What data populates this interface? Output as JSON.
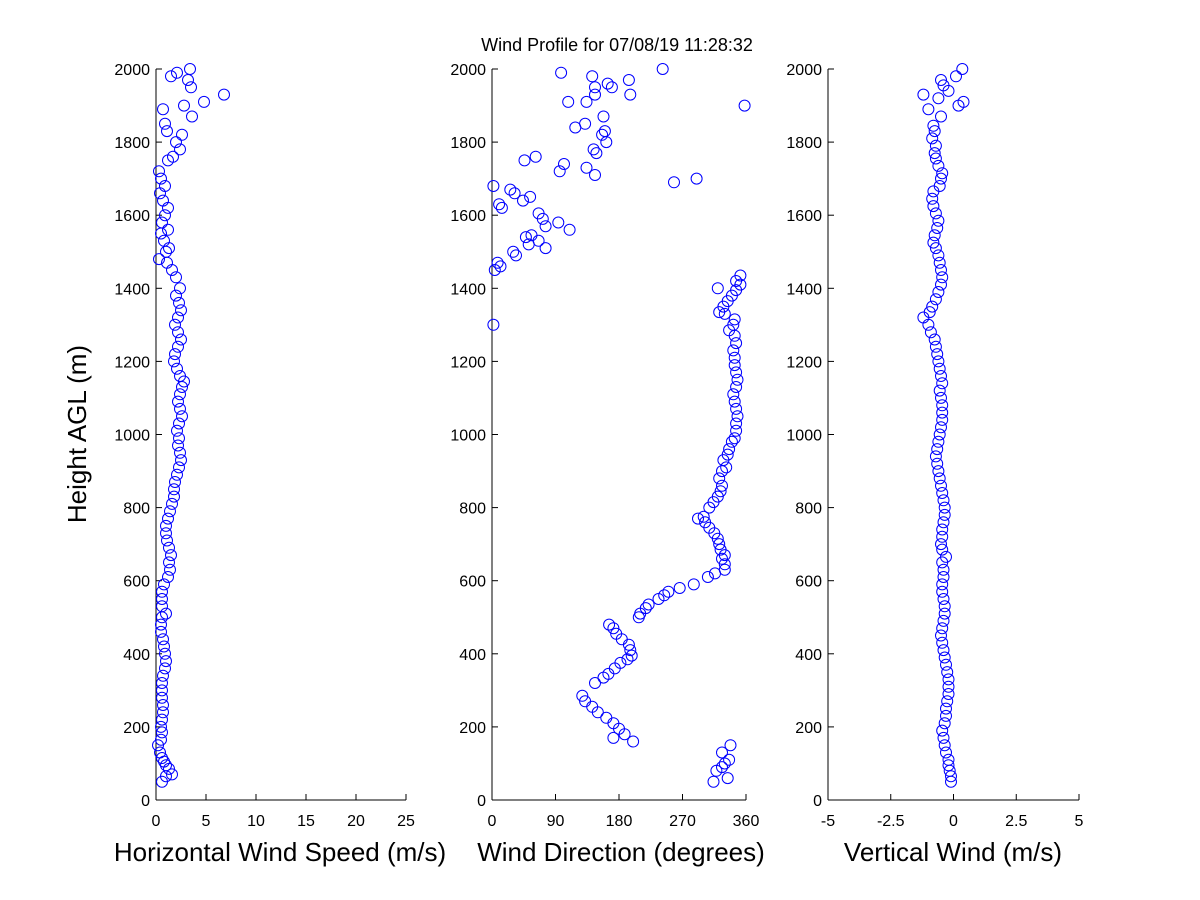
{
  "figure": {
    "title": "Wind Profile for  07/08/19 11:28:32",
    "ylabel": "Height AGL (m)"
  },
  "chart_data": [
    {
      "type": "scatter",
      "xlabel": "Horizontal Wind Speed (m/s)",
      "ylabel": "Height AGL (m)",
      "xlim": [
        0,
        25
      ],
      "ylim": [
        0,
        2000
      ],
      "xticks": [
        "0",
        "5",
        "10",
        "15",
        "20",
        "25"
      ],
      "yticks": [
        "0",
        "200",
        "400",
        "600",
        "800",
        "1000",
        "1200",
        "1400",
        "1600",
        "1800",
        "2000"
      ],
      "marker_color": "#0000ff",
      "grid": false,
      "points": [
        [
          0.6,
          50
        ],
        [
          1.0,
          65
        ],
        [
          1.6,
          70
        ],
        [
          1.3,
          85
        ],
        [
          1.0,
          95
        ],
        [
          0.8,
          105
        ],
        [
          0.6,
          115
        ],
        [
          0.4,
          130
        ],
        [
          0.2,
          150
        ],
        [
          0.5,
          165
        ],
        [
          0.6,
          185
        ],
        [
          0.5,
          200
        ],
        [
          0.6,
          220
        ],
        [
          0.7,
          240
        ],
        [
          0.7,
          260
        ],
        [
          0.6,
          280
        ],
        [
          0.6,
          300
        ],
        [
          0.6,
          320
        ],
        [
          0.7,
          340
        ],
        [
          0.9,
          360
        ],
        [
          1.0,
          380
        ],
        [
          0.9,
          400
        ],
        [
          0.8,
          420
        ],
        [
          0.7,
          440
        ],
        [
          0.5,
          460
        ],
        [
          0.5,
          480
        ],
        [
          0.6,
          500
        ],
        [
          1.0,
          510
        ],
        [
          0.6,
          530
        ],
        [
          0.6,
          550
        ],
        [
          0.6,
          570
        ],
        [
          0.8,
          590
        ],
        [
          1.2,
          610
        ],
        [
          1.4,
          630
        ],
        [
          1.3,
          650
        ],
        [
          1.5,
          670
        ],
        [
          1.3,
          690
        ],
        [
          1.1,
          710
        ],
        [
          1.0,
          730
        ],
        [
          1.0,
          750
        ],
        [
          1.2,
          770
        ],
        [
          1.4,
          790
        ],
        [
          1.6,
          810
        ],
        [
          1.8,
          830
        ],
        [
          1.8,
          850
        ],
        [
          1.9,
          870
        ],
        [
          2.1,
          890
        ],
        [
          2.3,
          910
        ],
        [
          2.5,
          930
        ],
        [
          2.4,
          950
        ],
        [
          2.2,
          970
        ],
        [
          2.3,
          990
        ],
        [
          2.1,
          1010
        ],
        [
          2.3,
          1030
        ],
        [
          2.6,
          1050
        ],
        [
          2.4,
          1070
        ],
        [
          2.2,
          1090
        ],
        [
          2.4,
          1110
        ],
        [
          2.6,
          1130
        ],
        [
          2.8,
          1145
        ],
        [
          2.4,
          1160
        ],
        [
          2.1,
          1180
        ],
        [
          1.8,
          1200
        ],
        [
          1.9,
          1220
        ],
        [
          2.2,
          1240
        ],
        [
          2.5,
          1260
        ],
        [
          2.2,
          1280
        ],
        [
          1.9,
          1300
        ],
        [
          2.2,
          1320
        ],
        [
          2.5,
          1340
        ],
        [
          2.3,
          1360
        ],
        [
          2.0,
          1380
        ],
        [
          2.4,
          1400
        ],
        [
          2.0,
          1430
        ],
        [
          1.6,
          1450
        ],
        [
          1.1,
          1470
        ],
        [
          0.3,
          1480
        ],
        [
          1.0,
          1500
        ],
        [
          1.3,
          1510
        ],
        [
          0.8,
          1530
        ],
        [
          0.5,
          1550
        ],
        [
          1.2,
          1560
        ],
        [
          0.6,
          1580
        ],
        [
          0.9,
          1600
        ],
        [
          1.2,
          1620
        ],
        [
          0.7,
          1640
        ],
        [
          0.4,
          1660
        ],
        [
          0.9,
          1680
        ],
        [
          0.5,
          1700
        ],
        [
          0.3,
          1720
        ],
        [
          1.2,
          1750
        ],
        [
          1.7,
          1760
        ],
        [
          2.4,
          1780
        ],
        [
          2.0,
          1800
        ],
        [
          2.6,
          1820
        ],
        [
          1.1,
          1830
        ],
        [
          0.9,
          1850
        ],
        [
          0.7,
          1890
        ],
        [
          2.8,
          1900
        ],
        [
          4.8,
          1910
        ],
        [
          6.8,
          1930
        ],
        [
          3.5,
          1950
        ],
        [
          3.2,
          1970
        ],
        [
          1.5,
          1980
        ],
        [
          2.1,
          1990
        ],
        [
          3.4,
          2000
        ],
        [
          3.6,
          1870
        ]
      ]
    },
    {
      "type": "scatter",
      "xlabel": "Wind Direction (degrees)",
      "xlim": [
        0,
        360
      ],
      "ylim": [
        0,
        2000
      ],
      "xticks": [
        "0",
        "90",
        "180",
        "270",
        "360"
      ],
      "yticks": [
        "0",
        "200",
        "400",
        "600",
        "800",
        "1000",
        "1200",
        "1400",
        "1600",
        "1800",
        "2000"
      ],
      "marker_color": "#0000ff",
      "grid": false,
      "points": [
        [
          314,
          50
        ],
        [
          334,
          60
        ],
        [
          318,
          80
        ],
        [
          326,
          90
        ],
        [
          330,
          100
        ],
        [
          336,
          110
        ],
        [
          326,
          130
        ],
        [
          338,
          150
        ],
        [
          200,
          160
        ],
        [
          172,
          170
        ],
        [
          188,
          180
        ],
        [
          180,
          195
        ],
        [
          172,
          210
        ],
        [
          162,
          225
        ],
        [
          150,
          240
        ],
        [
          142,
          255
        ],
        [
          132,
          270
        ],
        [
          128,
          285
        ],
        [
          146,
          320
        ],
        [
          158,
          335
        ],
        [
          165,
          345
        ],
        [
          174,
          360
        ],
        [
          182,
          375
        ],
        [
          192,
          385
        ],
        [
          198,
          395
        ],
        [
          196,
          410
        ],
        [
          194,
          425
        ],
        [
          184,
          440
        ],
        [
          176,
          455
        ],
        [
          172,
          470
        ],
        [
          166,
          480
        ],
        [
          208,
          500
        ],
        [
          210,
          510
        ],
        [
          218,
          525
        ],
        [
          222,
          535
        ],
        [
          236,
          550
        ],
        [
          244,
          560
        ],
        [
          250,
          570
        ],
        [
          266,
          580
        ],
        [
          286,
          590
        ],
        [
          306,
          610
        ],
        [
          316,
          620
        ],
        [
          330,
          630
        ],
        [
          330,
          645
        ],
        [
          326,
          660
        ],
        [
          330,
          670
        ],
        [
          324,
          685
        ],
        [
          322,
          700
        ],
        [
          320,
          715
        ],
        [
          315,
          730
        ],
        [
          308,
          745
        ],
        [
          302,
          760
        ],
        [
          292,
          770
        ],
        [
          300,
          775
        ],
        [
          308,
          800
        ],
        [
          314,
          815
        ],
        [
          320,
          830
        ],
        [
          324,
          845
        ],
        [
          326,
          860
        ],
        [
          322,
          880
        ],
        [
          326,
          900
        ],
        [
          332,
          910
        ],
        [
          328,
          930
        ],
        [
          334,
          945
        ],
        [
          336,
          960
        ],
        [
          340,
          980
        ],
        [
          344,
          990
        ],
        [
          346,
          1010
        ],
        [
          346,
          1030
        ],
        [
          348,
          1050
        ],
        [
          346,
          1070
        ],
        [
          344,
          1090
        ],
        [
          342,
          1110
        ],
        [
          346,
          1130
        ],
        [
          348,
          1150
        ],
        [
          346,
          1170
        ],
        [
          344,
          1190
        ],
        [
          344,
          1210
        ],
        [
          342,
          1230
        ],
        [
          346,
          1250
        ],
        [
          344,
          1270
        ],
        [
          336,
          1285
        ],
        [
          342,
          1300
        ],
        [
          344,
          1315
        ],
        [
          330,
          1330
        ],
        [
          322,
          1335
        ],
        [
          328,
          1350
        ],
        [
          334,
          1365
        ],
        [
          340,
          1380
        ],
        [
          346,
          1395
        ],
        [
          352,
          1410
        ],
        [
          346,
          1420
        ],
        [
          352,
          1435
        ],
        [
          320,
          1400
        ],
        [
          2,
          1300
        ],
        [
          4,
          1450
        ],
        [
          12,
          1460
        ],
        [
          8,
          1470
        ],
        [
          34,
          1490
        ],
        [
          30,
          1500
        ],
        [
          76,
          1510
        ],
        [
          52,
          1520
        ],
        [
          66,
          1530
        ],
        [
          56,
          1545
        ],
        [
          48,
          1540
        ],
        [
          110,
          1560
        ],
        [
          76,
          1570
        ],
        [
          94,
          1580
        ],
        [
          72,
          1590
        ],
        [
          66,
          1605
        ],
        [
          14,
          1620
        ],
        [
          10,
          1630
        ],
        [
          44,
          1640
        ],
        [
          54,
          1650
        ],
        [
          32,
          1660
        ],
        [
          26,
          1670
        ],
        [
          2,
          1680
        ],
        [
          258,
          1690
        ],
        [
          290,
          1700
        ],
        [
          96,
          1720
        ],
        [
          102,
          1740
        ],
        [
          46,
          1750
        ],
        [
          62,
          1760
        ],
        [
          148,
          1770
        ],
        [
          144,
          1780
        ],
        [
          162,
          1800
        ],
        [
          156,
          1820
        ],
        [
          160,
          1830
        ],
        [
          118,
          1840
        ],
        [
          132,
          1850
        ],
        [
          158,
          1870
        ],
        [
          108,
          1910
        ],
        [
          134,
          1910
        ],
        [
          146,
          1930
        ],
        [
          196,
          1930
        ],
        [
          146,
          1950
        ],
        [
          170,
          1950
        ],
        [
          164,
          1960
        ],
        [
          194,
          1970
        ],
        [
          142,
          1980
        ],
        [
          98,
          1990
        ],
        [
          242,
          2000
        ],
        [
          358,
          1900
        ],
        [
          134,
          1730
        ],
        [
          146,
          1710
        ]
      ]
    },
    {
      "type": "scatter",
      "xlabel": "Vertical Wind (m/s)",
      "xlim": [
        -5,
        5
      ],
      "ylim": [
        0,
        2000
      ],
      "xticks": [
        "-5",
        "-2.5",
        "0",
        "2.5",
        "5"
      ],
      "yticks": [
        "0",
        "200",
        "400",
        "600",
        "800",
        "1000",
        "1200",
        "1400",
        "1600",
        "1800",
        "2000"
      ],
      "marker_color": "#0000ff",
      "grid": false,
      "points": [
        [
          -0.1,
          50
        ],
        [
          -0.1,
          65
        ],
        [
          -0.15,
          80
        ],
        [
          -0.2,
          95
        ],
        [
          -0.2,
          110
        ],
        [
          -0.3,
          130
        ],
        [
          -0.35,
          150
        ],
        [
          -0.4,
          170
        ],
        [
          -0.45,
          190
        ],
        [
          -0.35,
          210
        ],
        [
          -0.3,
          230
        ],
        [
          -0.3,
          250
        ],
        [
          -0.25,
          270
        ],
        [
          -0.2,
          290
        ],
        [
          -0.2,
          310
        ],
        [
          -0.2,
          330
        ],
        [
          -0.25,
          350
        ],
        [
          -0.3,
          370
        ],
        [
          -0.35,
          390
        ],
        [
          -0.4,
          410
        ],
        [
          -0.45,
          430
        ],
        [
          -0.5,
          450
        ],
        [
          -0.45,
          470
        ],
        [
          -0.4,
          490
        ],
        [
          -0.35,
          510
        ],
        [
          -0.35,
          530
        ],
        [
          -0.4,
          550
        ],
        [
          -0.45,
          570
        ],
        [
          -0.45,
          590
        ],
        [
          -0.4,
          610
        ],
        [
          -0.4,
          630
        ],
        [
          -0.45,
          650
        ],
        [
          -0.3,
          665
        ],
        [
          -0.45,
          685
        ],
        [
          -0.5,
          700
        ],
        [
          -0.45,
          720
        ],
        [
          -0.45,
          740
        ],
        [
          -0.4,
          760
        ],
        [
          -0.35,
          780
        ],
        [
          -0.35,
          800
        ],
        [
          -0.4,
          820
        ],
        [
          -0.45,
          840
        ],
        [
          -0.5,
          860
        ],
        [
          -0.55,
          880
        ],
        [
          -0.6,
          900
        ],
        [
          -0.65,
          920
        ],
        [
          -0.7,
          940
        ],
        [
          -0.65,
          960
        ],
        [
          -0.6,
          980
        ],
        [
          -0.55,
          1000
        ],
        [
          -0.5,
          1020
        ],
        [
          -0.45,
          1040
        ],
        [
          -0.45,
          1060
        ],
        [
          -0.45,
          1080
        ],
        [
          -0.5,
          1100
        ],
        [
          -0.55,
          1120
        ],
        [
          -0.45,
          1140
        ],
        [
          -0.5,
          1160
        ],
        [
          -0.55,
          1180
        ],
        [
          -0.6,
          1200
        ],
        [
          -0.65,
          1220
        ],
        [
          -0.7,
          1240
        ],
        [
          -0.75,
          1260
        ],
        [
          -0.9,
          1280
        ],
        [
          -1.0,
          1300
        ],
        [
          -1.2,
          1320
        ],
        [
          -0.95,
          1335
        ],
        [
          -0.85,
          1350
        ],
        [
          -0.7,
          1370
        ],
        [
          -0.6,
          1390
        ],
        [
          -0.5,
          1410
        ],
        [
          -0.45,
          1430
        ],
        [
          -0.5,
          1450
        ],
        [
          -0.55,
          1470
        ],
        [
          -0.6,
          1490
        ],
        [
          -0.7,
          1510
        ],
        [
          -0.8,
          1525
        ],
        [
          -0.75,
          1545
        ],
        [
          -0.65,
          1565
        ],
        [
          -0.6,
          1585
        ],
        [
          -0.7,
          1605
        ],
        [
          -0.8,
          1625
        ],
        [
          -0.85,
          1645
        ],
        [
          -0.8,
          1665
        ],
        [
          -0.55,
          1680
        ],
        [
          -0.5,
          1700
        ],
        [
          -0.45,
          1715
        ],
        [
          -0.6,
          1735
        ],
        [
          -0.7,
          1755
        ],
        [
          -0.75,
          1770
        ],
        [
          -0.7,
          1790
        ],
        [
          -0.85,
          1810
        ],
        [
          -0.75,
          1830
        ],
        [
          -0.8,
          1845
        ],
        [
          -0.5,
          1870
        ],
        [
          -1.0,
          1890
        ],
        [
          0.2,
          1900
        ],
        [
          0.4,
          1910
        ],
        [
          -0.6,
          1920
        ],
        [
          -1.2,
          1930
        ],
        [
          -0.2,
          1940
        ],
        [
          -0.4,
          1955
        ],
        [
          -0.5,
          1970
        ],
        [
          0.1,
          1980
        ],
        [
          0.35,
          2000
        ]
      ]
    }
  ]
}
